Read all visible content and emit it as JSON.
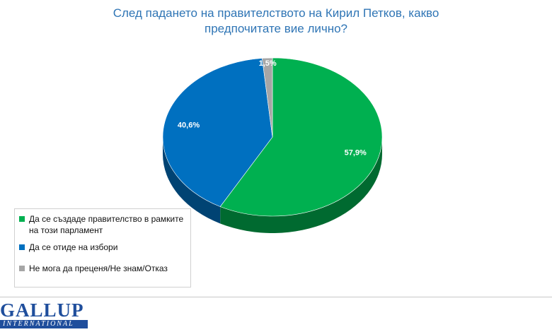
{
  "chart_data": {
    "type": "pie",
    "title_lines": [
      "След падането на правителството на Кирил Петков, какво",
      "предпочитате вие лично?"
    ],
    "slices": [
      {
        "label": "Да се създаде правителство в рамките на този парламент",
        "value": 57.9,
        "value_label": "57,9%",
        "color": "#00b050"
      },
      {
        "label": "Да се отиде на избори",
        "value": 40.6,
        "value_label": "40,6%",
        "color": "#0070c0"
      },
      {
        "label": "Не мога да преценя/Не  знам/Отказ",
        "value": 1.5,
        "value_label": "1,5%",
        "color": "#a6a6a6"
      }
    ],
    "legend_position": "bottom-left",
    "style": "3d"
  },
  "logo": {
    "top": "GALLUP",
    "bottom": "INTERNATIONAL"
  }
}
